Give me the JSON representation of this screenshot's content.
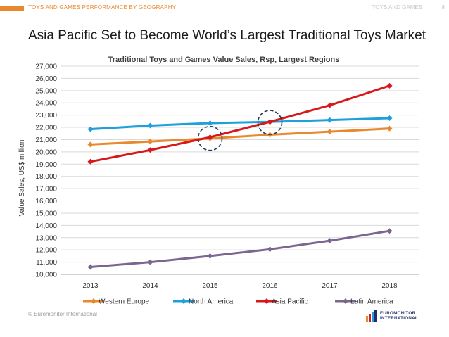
{
  "header": {
    "section_label": "TOYS AND GAMES PERFORMANCE BY GEOGRAPHY",
    "right_label": "TOYS AND GAMES",
    "page_number": "8",
    "accent_color": "#e8892d"
  },
  "slide_title": "Asia Pacific Set to Become World’s Largest Traditional Toys Market",
  "footer": {
    "copyright": "© Euromonitor International",
    "logo_line1": "EUROMONITOR",
    "logo_line2": "INTERNATIONAL"
  },
  "chart_data": {
    "type": "line",
    "title": "Traditional Toys and Games Value Sales, Rsp, Largest Regions",
    "xlabel": "",
    "ylabel": "Value Sales, US$ million",
    "ylim": [
      10000,
      27000
    ],
    "ytick_step": 1000,
    "yticks": [
      "10,000",
      "11,000",
      "12,000",
      "13,000",
      "14,000",
      "15,000",
      "16,000",
      "17,000",
      "18,000",
      "19,000",
      "20,000",
      "21,000",
      "22,000",
      "23,000",
      "24,000",
      "25,000",
      "26,000",
      "27,000"
    ],
    "categories": [
      "2013",
      "2014",
      "2015",
      "2016",
      "2017",
      "2018"
    ],
    "grid": true,
    "legend_position": "bottom",
    "series": [
      {
        "name": "Western Europe",
        "color": "#e8892d",
        "values": [
          20600,
          20850,
          21100,
          21400,
          21650,
          21900
        ]
      },
      {
        "name": "North America",
        "color": "#1ea0dc",
        "values": [
          21850,
          22150,
          22350,
          22450,
          22600,
          22750
        ]
      },
      {
        "name": "Asia Pacific",
        "color": "#d7191c",
        "values": [
          19200,
          20150,
          21200,
          22450,
          23800,
          25400
        ]
      },
      {
        "name": "Latin America",
        "color": "#7b6690",
        "values": [
          10600,
          11000,
          11500,
          12050,
          12750,
          13550
        ]
      }
    ],
    "annotations": [
      {
        "type": "dashed-circle",
        "category": "2015",
        "value": 21100,
        "color": "#1f3b57"
      },
      {
        "type": "dashed-circle",
        "category": "2016",
        "value": 22400,
        "color": "#1f3b57"
      }
    ]
  }
}
